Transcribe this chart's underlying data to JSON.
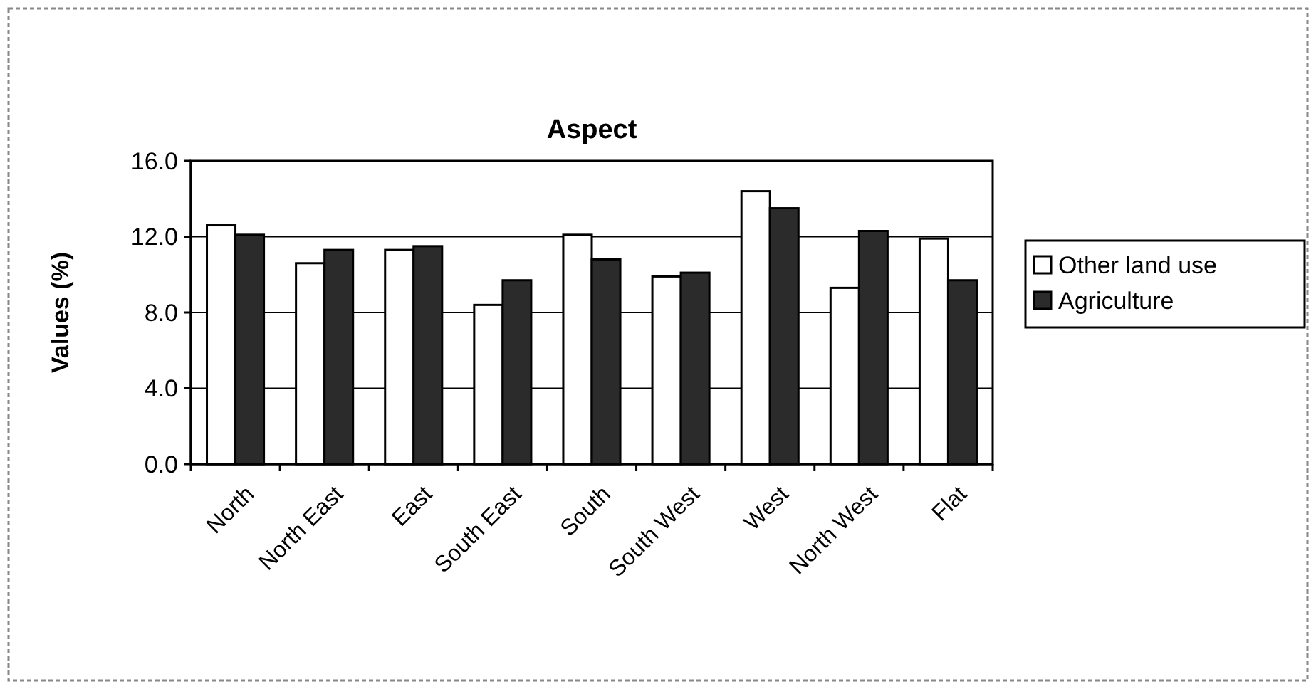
{
  "chart_data": {
    "type": "bar",
    "title": "Aspect",
    "ylabel": "Values (%)",
    "categories": [
      "North",
      "North East",
      "East",
      "South East",
      "South",
      "South West",
      "West",
      "North West",
      "Flat"
    ],
    "series": [
      {
        "name": "Other land use",
        "color": "#ffffff",
        "values": [
          12.6,
          10.6,
          11.3,
          8.4,
          12.1,
          9.9,
          14.4,
          9.3,
          11.9
        ]
      },
      {
        "name": "Agriculture",
        "color": "#2b2b2b",
        "values": [
          12.1,
          11.3,
          11.5,
          9.7,
          10.8,
          10.1,
          13.5,
          12.3,
          9.7
        ]
      }
    ],
    "ylim": [
      0,
      16
    ],
    "yticks": [
      {
        "value": 0,
        "label": "0.0"
      },
      {
        "value": 4,
        "label": "4.0"
      },
      {
        "value": 8,
        "label": "8.0"
      },
      {
        "value": 12,
        "label": "12.0"
      },
      {
        "value": 16,
        "label": "16.0"
      }
    ],
    "grid": "y",
    "legend": "right"
  }
}
